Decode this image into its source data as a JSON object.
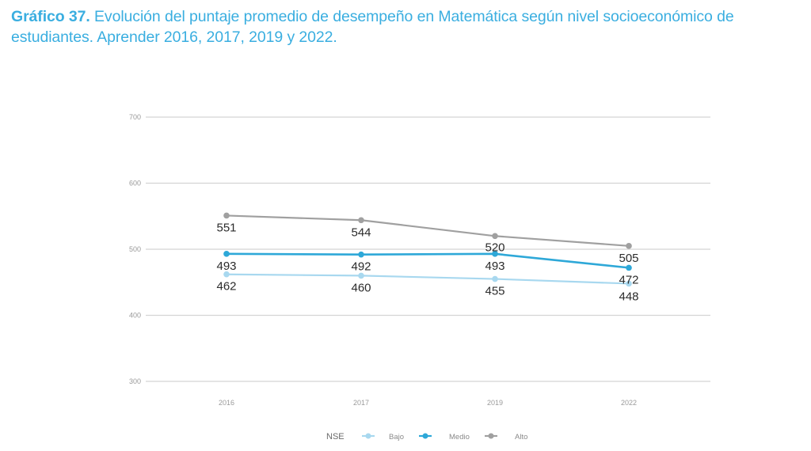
{
  "title": {
    "prefix": "Gráfico 37.",
    "text": " Evolución del puntaje promedio de  desempeño en Matemática según nivel socioeconómico de estudiantes. Aprender  2016, 2017, 2019 y 2022."
  },
  "chart_data": {
    "type": "line",
    "title": "Gráfico 37. Evolución del puntaje promedio de desempeño en Matemática según nivel socioeconómico de estudiantes. Aprender 2016, 2017, 2019 y 2022.",
    "xlabel": "",
    "ylabel": "",
    "categories": [
      "2016",
      "2017",
      "2019",
      "2022"
    ],
    "ylim": [
      300,
      700
    ],
    "yticks": [
      300,
      400,
      500,
      600,
      700
    ],
    "grid": true,
    "legend": {
      "title": "NSE",
      "position": "bottom"
    },
    "series": [
      {
        "name": "Bajo",
        "color": "#a8d8ef",
        "values": [
          462,
          460,
          455,
          448
        ]
      },
      {
        "name": "Medio",
        "color": "#2ea8d8",
        "values": [
          493,
          492,
          493,
          472
        ]
      },
      {
        "name": "Alto",
        "color": "#a0a0a0",
        "values": [
          551,
          544,
          520,
          505
        ]
      }
    ]
  }
}
